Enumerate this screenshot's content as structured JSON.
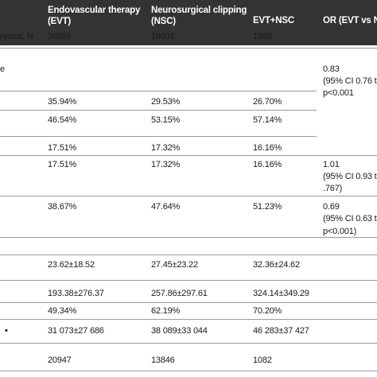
{
  "table": {
    "headers": {
      "evt": [
        "Endovascular therapy",
        "(EVT)"
      ],
      "nsc": [
        "Neurosurgical clipping",
        "(NSC)"
      ],
      "both": "EVT+NSC",
      "or": "OR (EVT vs N"
    },
    "rows": [
      {
        "label": "rysms, N",
        "evt": "26955",
        "nsc": "18601",
        "both": "1386"
      },
      {
        "label": "e",
        "evt": "",
        "nsc": "",
        "both": "",
        "or": [
          "0.83",
          "(95% CI 0.76 t",
          "p<0.001"
        ]
      },
      {
        "label": "",
        "evt": "35.94%",
        "nsc": "29.53%",
        "both": "26.70%"
      },
      {
        "label": "",
        "evt": "46.54%",
        "nsc": "53.15%",
        "both": "57.14%"
      },
      {
        "label": "",
        "evt": "17.51%",
        "nsc": "17.32%",
        "both": "16.16%"
      },
      {
        "label": "",
        "evt": "17.51%",
        "nsc": "17.32%",
        "both": "16.16%",
        "or": [
          "1.01",
          "(95% CI 0.93 t",
          ".767)"
        ]
      },
      {
        "label": "",
        "evt": "38.67%",
        "nsc": "47.64%",
        "both": "51.23%",
        "or": [
          "0.69",
          "(95% CI 0.63 t",
          "p<0.001)"
        ]
      },
      {
        "label": "",
        "evt": "",
        "nsc": "",
        "both": ""
      },
      {
        "label": "",
        "evt": "23.62±18.52",
        "nsc": "27.45±23.22",
        "both": "32.36±24.62"
      },
      {
        "label": "",
        "evt": "193.38±276.37",
        "nsc": "257.86±297.61",
        "both": "324.14±349.29"
      },
      {
        "label": "",
        "evt": "49.34%",
        "nsc": "62.19%",
        "both": "70.20%"
      },
      {
        "label": "",
        "evt": "31 073±27 686",
        "nsc": "38 089±33 044",
        "both": "46 283±37 427"
      },
      {
        "label": "",
        "evt": "20947",
        "nsc": "13846",
        "both": "1082"
      }
    ]
  }
}
